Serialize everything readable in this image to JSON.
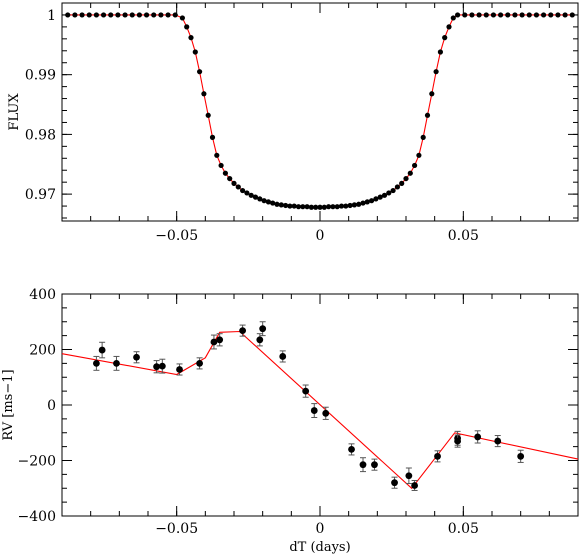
{
  "chart_data": [
    {
      "type": "scatter",
      "xlabel": "",
      "ylabel": "FLUX",
      "xlim": [
        -0.09,
        0.09
      ],
      "ylim": [
        0.9655,
        1.002
      ],
      "xticks": [
        -0.05,
        0,
        0.05
      ],
      "xtick_labels": [
        "−0.05",
        "0",
        "0.05"
      ],
      "yticks": [
        0.97,
        0.98,
        0.99,
        1
      ],
      "ytick_labels": [
        "0.97",
        "0.98",
        "0.99",
        "1"
      ],
      "model_color": "#ff0000",
      "point_color": "#000000",
      "series": [
        {
          "kind": "points",
          "x": [
            -0.088,
            -0.0855,
            -0.083,
            -0.0805,
            -0.078,
            -0.0755,
            -0.073,
            -0.0705,
            -0.068,
            -0.0655,
            -0.063,
            -0.0605,
            -0.058,
            -0.0555,
            -0.053,
            -0.0505,
            -0.048,
            -0.0465,
            -0.045,
            -0.0435,
            -0.042,
            -0.0405,
            -0.039,
            -0.0375,
            -0.036,
            -0.0345,
            -0.033,
            -0.0315,
            -0.03,
            -0.0285,
            -0.027,
            -0.0255,
            -0.024,
            -0.0225,
            -0.021,
            -0.0195,
            -0.018,
            -0.0165,
            -0.015,
            -0.0135,
            -0.012,
            -0.0105,
            -0.009,
            -0.0075,
            -0.006,
            -0.0045,
            -0.003,
            -0.0015,
            0,
            0.0015,
            0.003,
            0.0045,
            0.006,
            0.0075,
            0.009,
            0.0105,
            0.012,
            0.0135,
            0.015,
            0.0165,
            0.018,
            0.0195,
            0.021,
            0.0225,
            0.024,
            0.0255,
            0.027,
            0.0285,
            0.03,
            0.0315,
            0.033,
            0.0345,
            0.036,
            0.0375,
            0.039,
            0.0405,
            0.042,
            0.0435,
            0.045,
            0.0465,
            0.048,
            0.0505,
            0.053,
            0.0555,
            0.058,
            0.0605,
            0.063,
            0.0655,
            0.068,
            0.0705,
            0.073,
            0.0755,
            0.078,
            0.0805,
            0.083,
            0.0855,
            0.088
          ],
          "y": [
            1,
            1,
            1,
            1,
            1,
            1,
            1,
            1,
            1,
            1,
            1,
            1,
            1,
            1,
            1,
            1,
            0.9995,
            0.998,
            0.9962,
            0.9938,
            0.9905,
            0.9868,
            0.9832,
            0.9795,
            0.9765,
            0.9748,
            0.9735,
            0.9726,
            0.9718,
            0.9712,
            0.9706,
            0.9702,
            0.9698,
            0.9695,
            0.9692,
            0.9689,
            0.9687,
            0.9685,
            0.9683,
            0.9682,
            0.9681,
            0.968,
            0.968,
            0.9679,
            0.9679,
            0.9679,
            0.9678,
            0.9678,
            0.9678,
            0.9678,
            0.9679,
            0.9679,
            0.9679,
            0.968,
            0.968,
            0.9681,
            0.9682,
            0.9683,
            0.9685,
            0.9687,
            0.9689,
            0.9692,
            0.9695,
            0.9698,
            0.9702,
            0.9706,
            0.9712,
            0.9718,
            0.9726,
            0.9735,
            0.9748,
            0.9765,
            0.9795,
            0.9832,
            0.9868,
            0.9905,
            0.9938,
            0.9962,
            0.998,
            0.9995,
            1,
            1,
            1,
            1,
            1,
            1,
            1,
            1,
            1,
            1,
            1,
            1,
            1,
            1,
            1,
            1,
            1
          ]
        }
      ]
    },
    {
      "type": "scatter",
      "xlabel": "dT (days)",
      "ylabel": "RV [ms−1]",
      "xlim": [
        -0.09,
        0.09
      ],
      "ylim": [
        -400,
        400
      ],
      "xticks": [
        -0.05,
        0,
        0.05
      ],
      "xtick_labels": [
        "−0.05",
        "0",
        "0.05"
      ],
      "yticks": [
        -400,
        -200,
        0,
        200,
        400
      ],
      "ytick_labels": [
        "−400",
        "−200",
        "0",
        "200",
        "400"
      ],
      "model_color": "#ff0000",
      "point_color": "#000000",
      "error_color": "#555555",
      "model": {
        "x": [
          -0.09,
          -0.05,
          -0.04,
          -0.035,
          -0.028,
          0.032,
          0.047,
          0.09
        ],
        "y": [
          185,
          110,
          170,
          262,
          265,
          -300,
          -100,
          -195
        ]
      },
      "points": [
        {
          "x": -0.078,
          "y": 150,
          "err": 25
        },
        {
          "x": -0.076,
          "y": 198,
          "err": 28
        },
        {
          "x": -0.071,
          "y": 150,
          "err": 25
        },
        {
          "x": -0.064,
          "y": 172,
          "err": 20
        },
        {
          "x": -0.057,
          "y": 138,
          "err": 22
        },
        {
          "x": -0.055,
          "y": 140,
          "err": 25
        },
        {
          "x": -0.049,
          "y": 128,
          "err": 20
        },
        {
          "x": -0.042,
          "y": 150,
          "err": 20
        },
        {
          "x": -0.037,
          "y": 227,
          "err": 25
        },
        {
          "x": -0.035,
          "y": 235,
          "err": 22
        },
        {
          "x": -0.027,
          "y": 268,
          "err": 20
        },
        {
          "x": -0.021,
          "y": 235,
          "err": 22
        },
        {
          "x": -0.02,
          "y": 275,
          "err": 25
        },
        {
          "x": -0.013,
          "y": 175,
          "err": 20
        },
        {
          "x": -0.005,
          "y": 50,
          "err": 22
        },
        {
          "x": -0.002,
          "y": -20,
          "err": 25
        },
        {
          "x": 0.002,
          "y": -30,
          "err": 22
        },
        {
          "x": 0.011,
          "y": -160,
          "err": 20
        },
        {
          "x": 0.015,
          "y": -215,
          "err": 25
        },
        {
          "x": 0.019,
          "y": -215,
          "err": 20
        },
        {
          "x": 0.026,
          "y": -280,
          "err": 20
        },
        {
          "x": 0.031,
          "y": -255,
          "err": 28
        },
        {
          "x": 0.033,
          "y": -290,
          "err": 18
        },
        {
          "x": 0.041,
          "y": -185,
          "err": 20
        },
        {
          "x": 0.048,
          "y": -120,
          "err": 25
        },
        {
          "x": 0.048,
          "y": -130,
          "err": 22
        },
        {
          "x": 0.055,
          "y": -115,
          "err": 22
        },
        {
          "x": 0.062,
          "y": -130,
          "err": 20
        },
        {
          "x": 0.07,
          "y": -185,
          "err": 22
        }
      ]
    }
  ]
}
